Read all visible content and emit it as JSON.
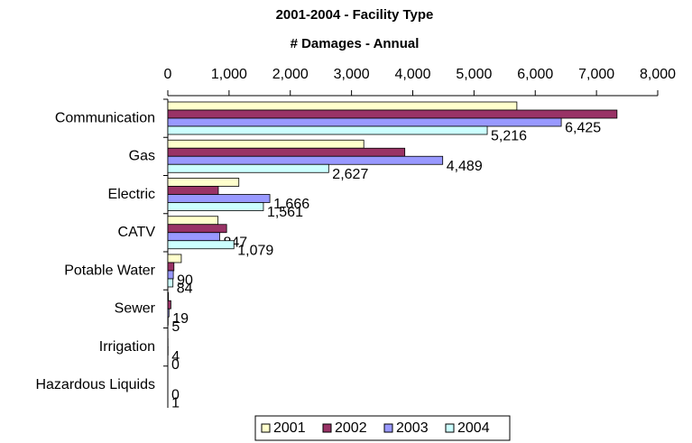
{
  "chart_data": {
    "type": "hbar",
    "title": "2001-2004 - Facility Type",
    "xlabel": "# Damages - Annual",
    "categories": [
      "Communication",
      "Gas",
      "Electric",
      "CATV",
      "Potable Water",
      "Sewer",
      "Irrigation",
      "Hazardous Liquids"
    ],
    "series": [
      {
        "name": "2001",
        "color": "#ffffcc",
        "values": [
          5700,
          3200,
          1160,
          820,
          220,
          10,
          2,
          0
        ]
      },
      {
        "name": "2002",
        "color": "#993366",
        "values": [
          7335,
          3870,
          825,
          960,
          100,
          50,
          3,
          0
        ]
      },
      {
        "name": "2003",
        "color": "#9999ff",
        "values": [
          6425,
          4489,
          1666,
          847,
          90,
          19,
          4,
          0
        ],
        "value_labels": [
          "6,425",
          "4,489",
          "1,666",
          "847",
          "90",
          "19",
          "4",
          "0"
        ]
      },
      {
        "name": "2004",
        "color": "#ccffff",
        "values": [
          5216,
          2627,
          1561,
          1079,
          84,
          5,
          0,
          1
        ],
        "value_labels": [
          "5,216",
          "2,627",
          "1,561",
          "1,079",
          "84",
          "5",
          "0",
          "1"
        ]
      }
    ],
    "xlim": [
      0,
      8000
    ],
    "xticks": [
      0,
      {
        "value": 1000,
        "label": "1,000"
      },
      {
        "value": 2000,
        "label": "2,000"
      },
      {
        "value": 3000,
        "label": "3,000"
      },
      {
        "value": 4000,
        "label": "4,000"
      },
      {
        "value": 5000,
        "label": "5,000"
      },
      {
        "value": 6000,
        "label": "6,000"
      },
      {
        "value": 7000,
        "label": "7,000"
      },
      {
        "value": 8000,
        "label": "8,000"
      }
    ],
    "legend": "bottom"
  }
}
